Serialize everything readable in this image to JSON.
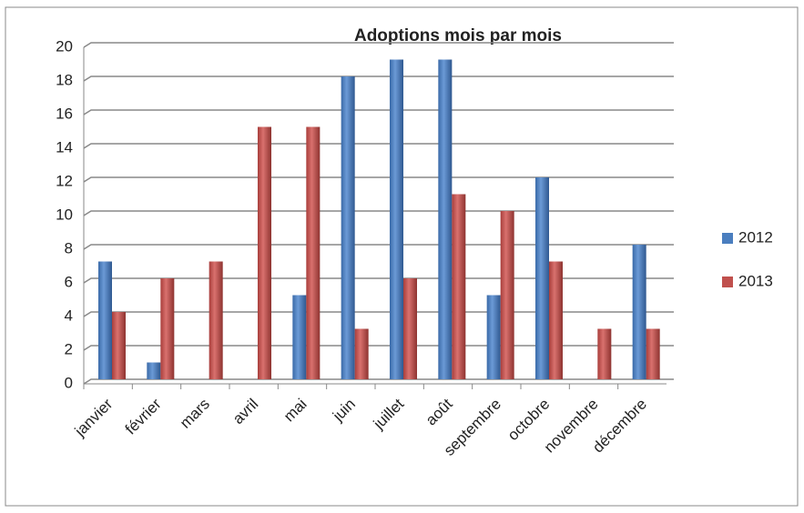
{
  "chart_data": {
    "type": "bar",
    "title": "Adoptions mois par mois",
    "categories": [
      "janvier",
      "février",
      "mars",
      "avril",
      "mai",
      "juin",
      "juillet",
      "août",
      "septembre",
      "octobre",
      "novembre",
      "décembre"
    ],
    "series": [
      {
        "name": "2012",
        "color": "#4a7ebf",
        "values": [
          7,
          1,
          0,
          0,
          5,
          18,
          19,
          19,
          5,
          12,
          0,
          8
        ]
      },
      {
        "name": "2013",
        "color": "#c0504d",
        "values": [
          4,
          6,
          7,
          15,
          15,
          3,
          6,
          11,
          10,
          7,
          3,
          3
        ]
      }
    ],
    "ylim": [
      0,
      20
    ],
    "yticks": [
      0,
      2,
      4,
      6,
      8,
      10,
      12,
      14,
      16,
      18,
      20
    ],
    "grid": true,
    "legend": "right"
  }
}
